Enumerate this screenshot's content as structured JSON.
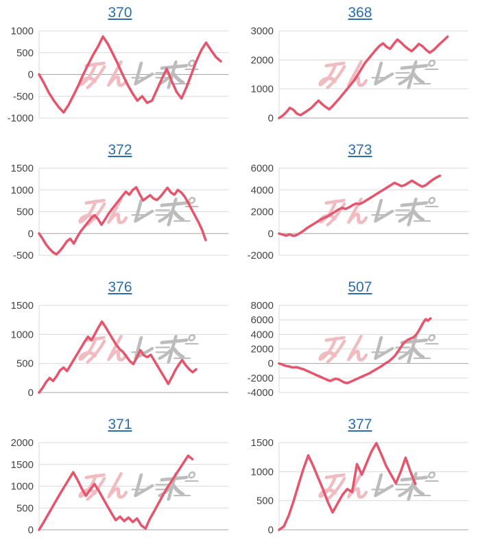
{
  "colors": {
    "line": "#e4566e",
    "title": "#2c6da9",
    "grid": "#d9d9d9",
    "baseline": "#a3a3a3",
    "axis_label": "#444444",
    "background": "#ffffff"
  },
  "watermark": {
    "text": "みんレポ",
    "pink_text": "みん",
    "gray_text": "レポ",
    "pink_color": "#f0bcc2",
    "gray_color": "#bcbcbc"
  },
  "chart_data": [
    {
      "type": "line",
      "title": "370",
      "ylim": [
        -1000,
        1000
      ],
      "yticks": [
        1000,
        500,
        0,
        -500,
        -1000
      ],
      "end_fraction": 0.96,
      "values": [
        0,
        -200,
        -420,
        -600,
        -750,
        -870,
        -700,
        -480,
        -250,
        0,
        230,
        450,
        640,
        870,
        700,
        480,
        250,
        0,
        -230,
        -430,
        -600,
        -500,
        -650,
        -600,
        -350,
        -100,
        130,
        -150,
        -400,
        -550,
        -300,
        0,
        300,
        550,
        730,
        560,
        400,
        300
      ]
    },
    {
      "type": "line",
      "title": "368",
      "ylim": [
        0,
        3000
      ],
      "yticks": [
        3000,
        2000,
        1000,
        0
      ],
      "end_fraction": 0.89,
      "values": [
        0,
        80,
        200,
        350,
        280,
        150,
        100,
        180,
        260,
        350,
        480,
        600,
        480,
        380,
        300,
        420,
        560,
        700,
        850,
        1000,
        1150,
        1300,
        1500,
        1700,
        1900,
        2050,
        2200,
        2350,
        2480,
        2570,
        2450,
        2380,
        2550,
        2700,
        2600,
        2480,
        2380,
        2300,
        2420,
        2550,
        2470,
        2350,
        2250,
        2330,
        2450,
        2570,
        2680,
        2800
      ]
    },
    {
      "type": "line",
      "title": "372",
      "ylim": [
        -500,
        1500
      ],
      "yticks": [
        1500,
        1000,
        500,
        0,
        -500
      ],
      "end_fraction": 0.88,
      "values": [
        0,
        -120,
        -250,
        -350,
        -430,
        -480,
        -400,
        -300,
        -180,
        -120,
        -230,
        -80,
        50,
        150,
        250,
        350,
        420,
        330,
        200,
        320,
        450,
        560,
        660,
        760,
        860,
        960,
        890,
        1000,
        1060,
        900,
        760,
        820,
        880,
        800,
        770,
        850,
        950,
        1050,
        940,
        890,
        1000,
        940,
        840,
        700,
        550,
        400,
        250,
        80,
        -150
      ]
    },
    {
      "type": "line",
      "title": "373",
      "ylim": [
        -2000,
        6000
      ],
      "yticks": [
        6000,
        4000,
        2000,
        0,
        -2000
      ],
      "end_fraction": 0.85,
      "values": [
        0,
        -100,
        -200,
        -80,
        -220,
        -150,
        50,
        250,
        500,
        700,
        900,
        1100,
        1300,
        1450,
        1600,
        1800,
        2000,
        2200,
        2350,
        2250,
        2400,
        2600,
        2750,
        2700,
        2850,
        3050,
        3250,
        3450,
        3650,
        3850,
        4050,
        4250,
        4450,
        4650,
        4500,
        4350,
        4450,
        4650,
        4850,
        4650,
        4450,
        4300,
        4450,
        4700,
        4950,
        5150,
        5300
      ]
    },
    {
      "type": "line",
      "title": "376",
      "ylim": [
        0,
        1500
      ],
      "yticks": [
        1500,
        1000,
        500,
        0
      ],
      "end_fraction": 0.83,
      "values": [
        0,
        80,
        180,
        250,
        200,
        280,
        380,
        430,
        370,
        470,
        570,
        670,
        770,
        870,
        960,
        900,
        1010,
        1120,
        1220,
        1130,
        1030,
        930,
        830,
        750,
        700,
        620,
        540,
        490,
        600,
        730,
        640,
        610,
        650,
        550,
        450,
        350,
        250,
        150,
        260,
        380,
        480,
        560,
        470,
        400,
        350,
        400
      ]
    },
    {
      "type": "line",
      "title": "507",
      "ylim": [
        -4000,
        8000
      ],
      "yticks": [
        8000,
        6000,
        4000,
        2000,
        0,
        -2000,
        -4000
      ],
      "end_fraction": 0.8,
      "values": [
        0,
        -100,
        -250,
        -350,
        -400,
        -500,
        -550,
        -500,
        -600,
        -700,
        -800,
        -950,
        -1100,
        -1250,
        -1400,
        -1550,
        -1700,
        -1850,
        -2000,
        -2150,
        -2300,
        -2400,
        -2250,
        -2100,
        -2150,
        -2300,
        -2500,
        -2650,
        -2700,
        -2550,
        -2400,
        -2250,
        -2100,
        -1950,
        -1800,
        -1650,
        -1500,
        -1350,
        -1150,
        -950,
        -750,
        -550,
        -350,
        -100,
        100,
        300,
        600,
        900,
        1300,
        1800,
        2300,
        2800,
        3100,
        3300,
        3450,
        3600,
        3900,
        4400,
        5000,
        5600,
        6100,
        5900,
        6200
      ]
    },
    {
      "type": "line",
      "title": "371",
      "ylim": [
        0,
        2000
      ],
      "yticks": [
        2000,
        1500,
        1000,
        500,
        0
      ],
      "end_fraction": 0.81,
      "values": [
        0,
        160,
        330,
        500,
        670,
        840,
        1000,
        1160,
        1320,
        1150,
        950,
        780,
        920,
        1050,
        900,
        720,
        550,
        380,
        220,
        300,
        200,
        280,
        180,
        260,
        100,
        30,
        250,
        420,
        600,
        780,
        950,
        1100,
        1250,
        1400,
        1550,
        1700,
        1620
      ]
    },
    {
      "type": "line",
      "title": "377",
      "ylim": [
        0,
        1500
      ],
      "yticks": [
        1500,
        1000,
        500,
        0
      ],
      "end_fraction": 0.72,
      "values": [
        0,
        60,
        250,
        500,
        780,
        1050,
        1280,
        1100,
        900,
        700,
        480,
        300,
        450,
        600,
        700,
        650,
        1130,
        950,
        1150,
        1350,
        1490,
        1300,
        1100,
        950,
        800,
        1000,
        1240,
        1000,
        790
      ]
    }
  ]
}
